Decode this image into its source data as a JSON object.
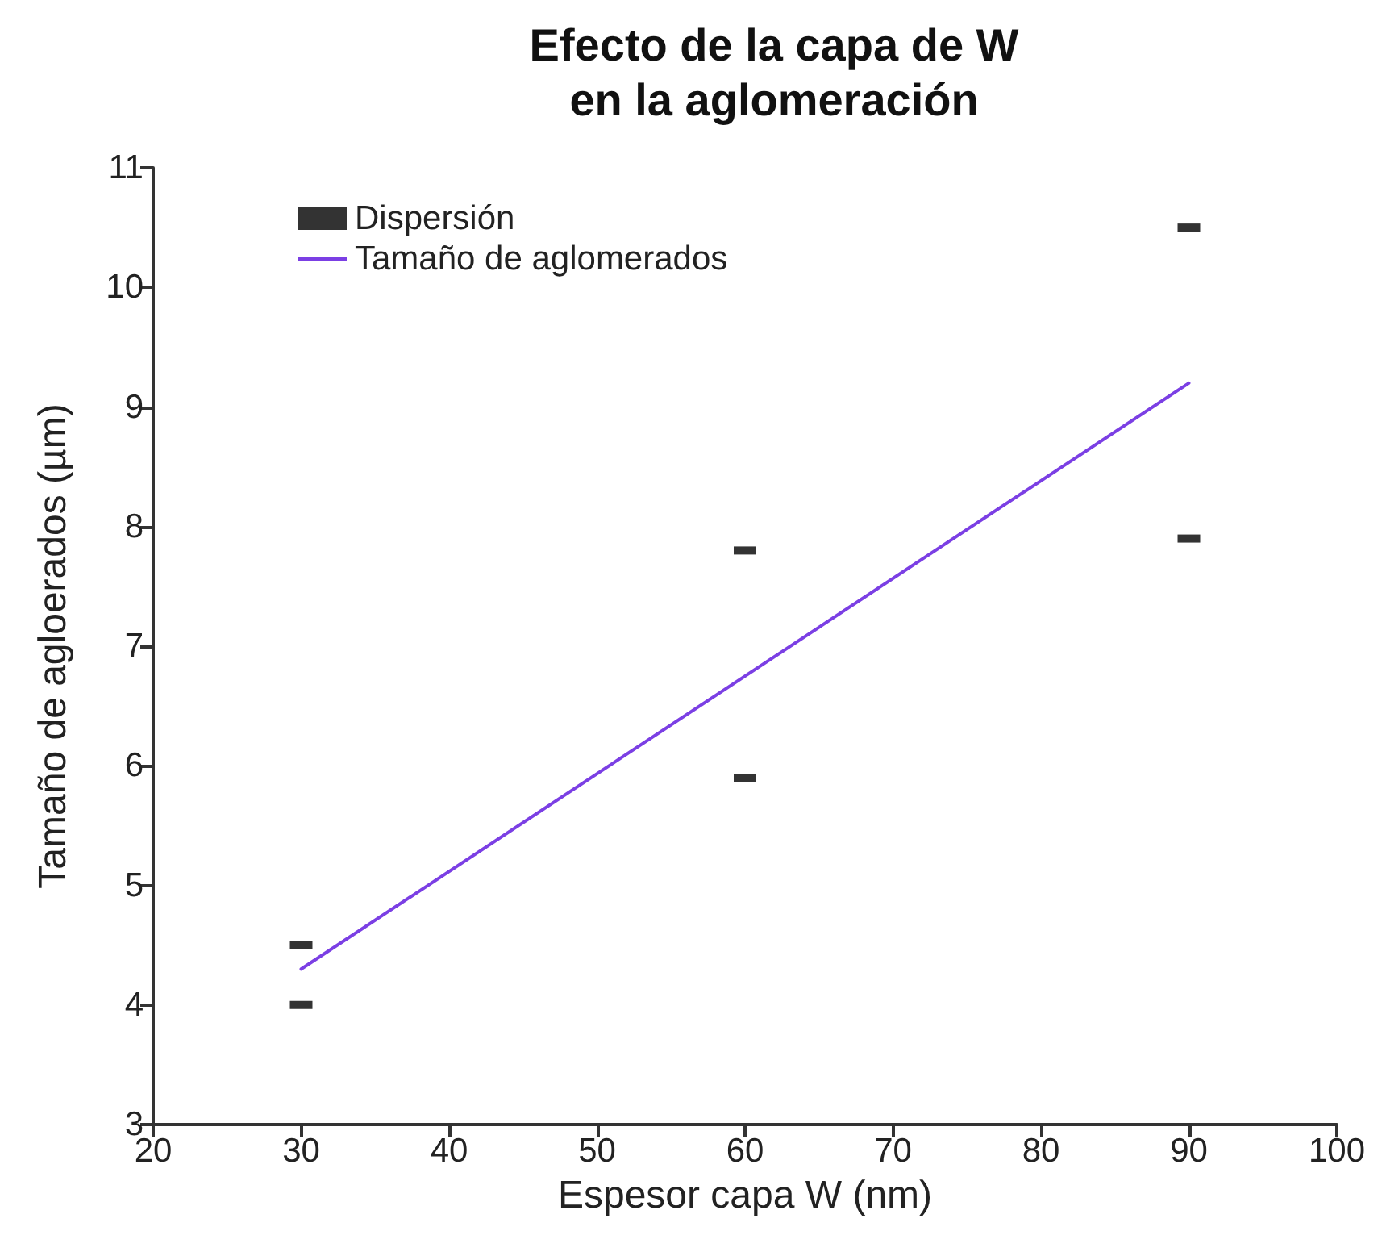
{
  "chart_data": {
    "type": "scatter",
    "title": "Efecto de la capa de W\nen la aglomeración",
    "xlabel": "Espesor capa W (nm)",
    "ylabel": "Tamaño de agloerados (µm)",
    "xlim": [
      20,
      100
    ],
    "xticks": [
      20,
      30,
      40,
      50,
      60,
      70,
      80,
      90,
      100
    ],
    "ylim": [
      3,
      11
    ],
    "yticks": [
      3,
      4,
      5,
      6,
      7,
      8,
      9,
      10,
      11
    ],
    "grid": false,
    "legend": "top left",
    "series": [
      {
        "name": "Dispersión",
        "color": "#000000",
        "marker": "square",
        "x": [
          30,
          30,
          60,
          60,
          90,
          90
        ],
        "values": [
          4.5,
          4.0,
          7.8,
          5.9,
          10.5,
          7.9
        ]
      },
      {
        "name": "Tamaño de aglomerados",
        "type": "line",
        "color": "#7b3fe4",
        "marker": "none",
        "x": [
          30,
          90
        ],
        "values": [
          4.3,
          9.2
        ]
      }
    ]
  }
}
